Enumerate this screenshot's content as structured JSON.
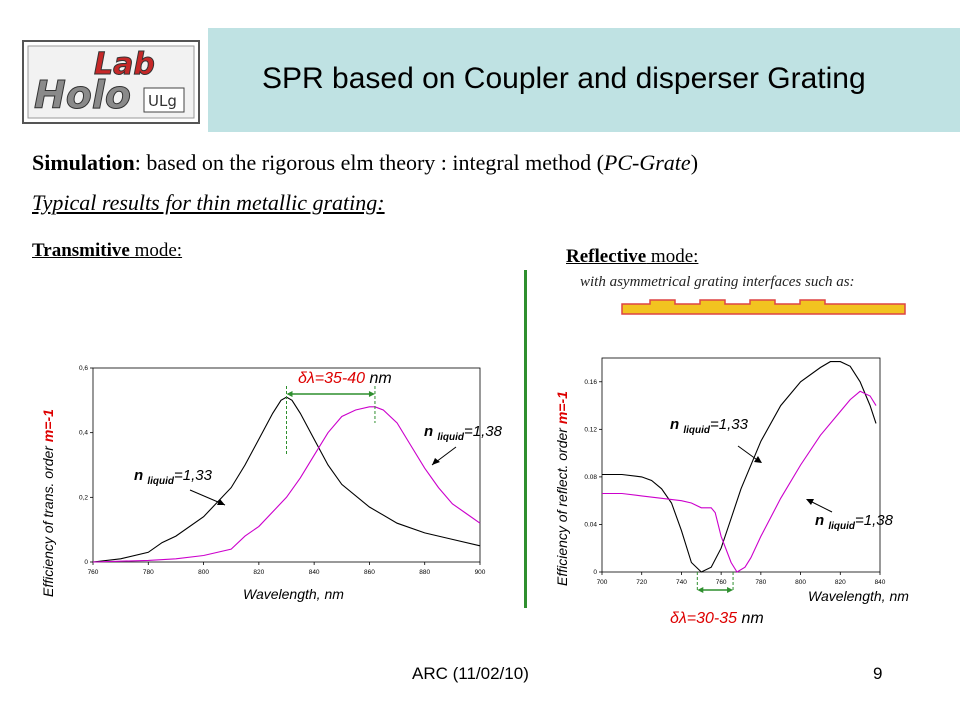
{
  "header": {
    "title": "SPR based on Coupler and disperser Grating",
    "logo_text": "HoloLab ULg",
    "band_color": "#bfe2e3"
  },
  "intro": {
    "simulation_label": "Simulation",
    "simulation_text": ":  based on the rigorous elm theory : integral method (",
    "simulation_method": "PC-Grate",
    "simulation_close": ")",
    "typical": "Typical results for thin metallic grating:"
  },
  "transmitive": {
    "heading_bold": "Transmitive",
    "heading_rest": " mode:"
  },
  "reflective": {
    "heading_bold": "Reflective",
    "heading_rest": " mode:",
    "note": "with asymmetrical grating interfaces such as:"
  },
  "charts": {
    "left": {
      "ylabel_main": "Efficiency of trans. order ",
      "ylabel_order": "m=-1",
      "xlabel": "Wavelength, nm",
      "delta": "δλ=35-40",
      "delta_unit": " nm",
      "n1_label": "n",
      "n1_sub": "liquid",
      "n1_value": "=1,33",
      "n2_label": "n",
      "n2_sub": "liquid",
      "n2_value": "=1,38"
    },
    "right": {
      "ylabel_main": "Efficiency of reflect. order ",
      "ylabel_order": "m=-1",
      "xlabel": "Wavelength, nm",
      "delta": "δλ=30-35",
      "delta_unit": " nm",
      "n1_label": "n",
      "n1_sub": "liquid",
      "n1_value": "=1,33",
      "n2_label": "n",
      "n2_sub": "liquid",
      "n2_value": "=1,38"
    }
  },
  "chart_data": [
    {
      "type": "line",
      "xlabel": "Wavelength, nm",
      "ylabel": "Efficiency of trans. order m=-1",
      "xlim": [
        760,
        900
      ],
      "ylim": [
        0,
        0.6
      ],
      "xticks": [
        "760",
        "780",
        "800",
        "820",
        "840",
        "860",
        "880",
        "900"
      ],
      "yticks": [
        "0",
        "0,2",
        "0,4",
        "0,6"
      ],
      "series": [
        {
          "name": "n liquid=1,33",
          "color": "#000000",
          "x": [
            760,
            770,
            780,
            785,
            790,
            800,
            810,
            815,
            820,
            825,
            828,
            830,
            832,
            835,
            840,
            845,
            850,
            860,
            870,
            880,
            890,
            900
          ],
          "y": [
            0.0,
            0.01,
            0.03,
            0.06,
            0.08,
            0.14,
            0.23,
            0.3,
            0.38,
            0.46,
            0.5,
            0.51,
            0.5,
            0.46,
            0.38,
            0.3,
            0.24,
            0.17,
            0.12,
            0.09,
            0.07,
            0.05
          ]
        },
        {
          "name": "n liquid=1,38",
          "color": "#cc00cc",
          "x": [
            760,
            780,
            790,
            800,
            810,
            815,
            820,
            830,
            835,
            840,
            845,
            850,
            855,
            860,
            862,
            865,
            870,
            875,
            880,
            885,
            890,
            895,
            900
          ],
          "y": [
            0.0,
            0.005,
            0.01,
            0.02,
            0.04,
            0.08,
            0.11,
            0.2,
            0.26,
            0.33,
            0.4,
            0.45,
            0.47,
            0.48,
            0.48,
            0.47,
            0.43,
            0.36,
            0.29,
            0.23,
            0.18,
            0.15,
            0.12
          ]
        }
      ]
    },
    {
      "type": "line",
      "xlabel": "Wavelength, nm",
      "ylabel": "Efficiency of reflect. order m=-1",
      "xlim": [
        700,
        840
      ],
      "ylim": [
        0,
        0.18
      ],
      "xticks": [
        "700",
        "720",
        "740",
        "760",
        "780",
        "800",
        "820",
        "840"
      ],
      "yticks": [
        "0",
        "0.04",
        "0.08",
        "0.12",
        "0.16"
      ],
      "series": [
        {
          "name": "n liquid=1,33",
          "color": "#000000",
          "x": [
            700,
            710,
            720,
            725,
            730,
            735,
            740,
            745,
            750,
            755,
            760,
            765,
            770,
            780,
            790,
            800,
            810,
            815,
            820,
            825,
            830,
            835,
            838
          ],
          "y": [
            0.082,
            0.082,
            0.08,
            0.077,
            0.07,
            0.058,
            0.035,
            0.008,
            0.0,
            0.004,
            0.02,
            0.045,
            0.07,
            0.11,
            0.14,
            0.16,
            0.172,
            0.177,
            0.177,
            0.173,
            0.16,
            0.14,
            0.125
          ]
        },
        {
          "name": "n liquid=1,38",
          "color": "#cc00cc",
          "x": [
            700,
            710,
            720,
            730,
            740,
            745,
            750,
            755,
            757,
            760,
            765,
            768,
            772,
            775,
            780,
            790,
            800,
            810,
            820,
            825,
            830,
            835,
            838
          ],
          "y": [
            0.066,
            0.066,
            0.064,
            0.062,
            0.06,
            0.058,
            0.054,
            0.054,
            0.05,
            0.03,
            0.008,
            0.0,
            0.004,
            0.012,
            0.03,
            0.062,
            0.09,
            0.115,
            0.135,
            0.145,
            0.152,
            0.148,
            0.14
          ]
        }
      ]
    }
  ]
}
